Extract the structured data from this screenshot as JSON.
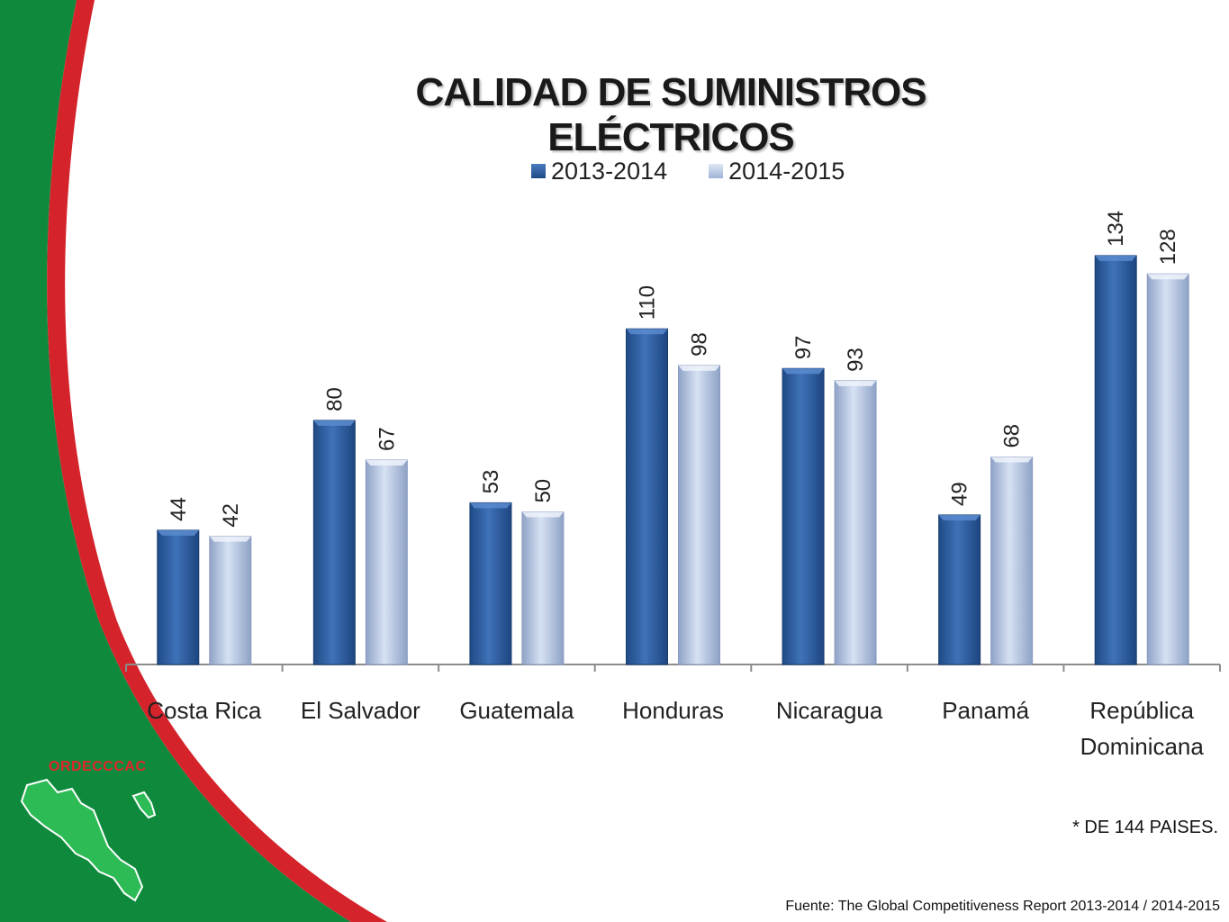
{
  "logo": {
    "text": "ORDECCCAC"
  },
  "footer": {
    "note": "* DE 144 PAISES.",
    "source": "Fuente: The Global Competitiveness Report 2013-2014 / 2014-2015"
  },
  "colors": {
    "green": "#0f8a3c",
    "red": "#d4232a",
    "series1": "#2e5d9e",
    "series2": "#b9c9e6"
  },
  "chart_data": {
    "type": "bar",
    "title": "CALIDAD DE SUMINISTROS ELÉCTRICOS",
    "categories": [
      "Costa Rica",
      "El Salvador",
      "Guatemala",
      "Honduras",
      "Nicaragua",
      "Panamá",
      "República Dominicana"
    ],
    "series": [
      {
        "name": "2013-2014",
        "values": [
          44,
          80,
          53,
          110,
          97,
          49,
          134
        ],
        "color": "#2e5d9e"
      },
      {
        "name": "2014-2015",
        "values": [
          42,
          67,
          50,
          98,
          93,
          68,
          128
        ],
        "color": "#b9c9e6"
      }
    ],
    "ylim": [
      0,
      144
    ],
    "grid": false,
    "legend": "top",
    "data_labels": true
  }
}
